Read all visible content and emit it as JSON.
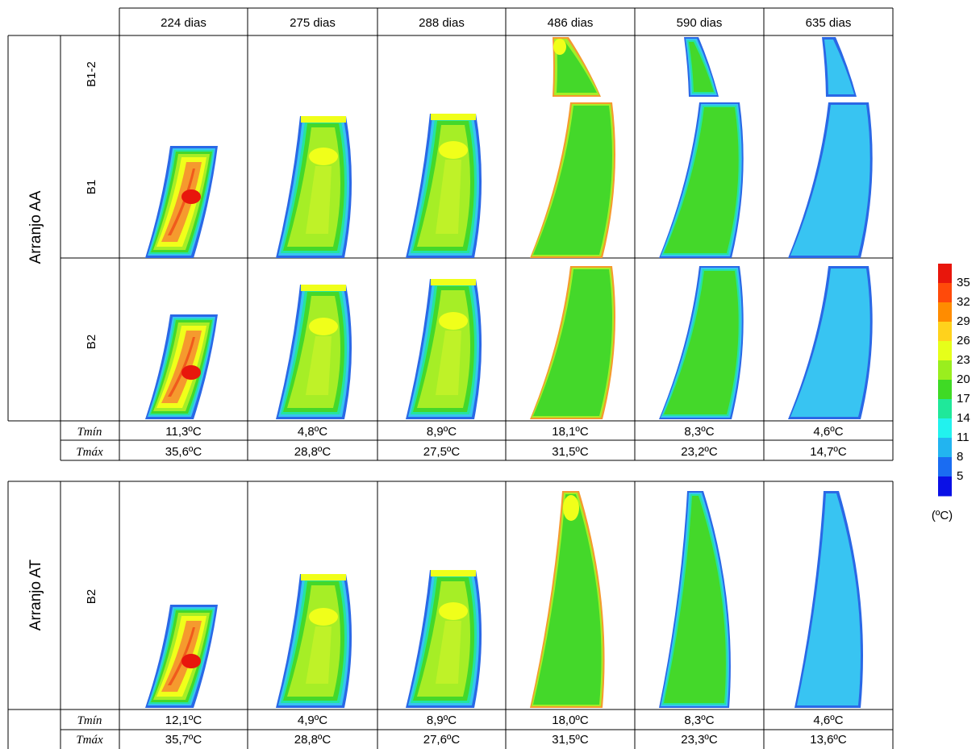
{
  "columns": [
    "224 dias",
    "275 dias",
    "288 dias",
    "486 dias",
    "590 dias",
    "635 dias"
  ],
  "groups": [
    {
      "label": "Arranjo AA",
      "layers": [
        "B1-2",
        "B1",
        "B2"
      ],
      "tmin_label": "Tmín",
      "tmax_label": "Tmáx",
      "tmin": [
        "11,3ºC",
        "4,8ºC",
        "8,9ºC",
        "18,1ºC",
        "8,3ºC",
        "4,6ºC"
      ],
      "tmax": [
        "35,6ºC",
        "28,8ºC",
        "27,5ºC",
        "31,5ºC",
        "23,2ºC",
        "14,7ºC"
      ]
    },
    {
      "label": "Arranjo AT",
      "layers": [
        "B2"
      ],
      "tmin_label": "Tmín",
      "tmax_label": "Tmáx",
      "tmin": [
        "12,1ºC",
        "4,9ºC",
        "8,9ºC",
        "18,0ºC",
        "8,3ºC",
        "4,6ºC"
      ],
      "tmax": [
        "35,7ºC",
        "28,8ºC",
        "27,6ºC",
        "31,5ºC",
        "23,3ºC",
        "13,6ºC"
      ]
    }
  ],
  "legend": {
    "unit": "(ºC)",
    "ticks": [
      "35",
      "32",
      "29",
      "26",
      "23",
      "20",
      "17",
      "14",
      "11",
      "8",
      "5"
    ],
    "colors": [
      "#e8160c",
      "#ff4a0a",
      "#ff8c00",
      "#ffd21c",
      "#e6ff1a",
      "#9aee1e",
      "#3fda25",
      "#1fe89a",
      "#22f2ee",
      "#22b4f0",
      "#1a6cf2",
      "#0a10e6"
    ]
  },
  "palette": {
    "red": "#e8160c",
    "orange_red": "#f05a1c",
    "orange": "#f59a2e",
    "yellow": "#f0ff1a",
    "light_green": "#a6ee26",
    "green": "#44d82a",
    "cyan_green": "#24e4a0",
    "light_blue": "#38c4f2",
    "blue": "#2a68e6"
  }
}
